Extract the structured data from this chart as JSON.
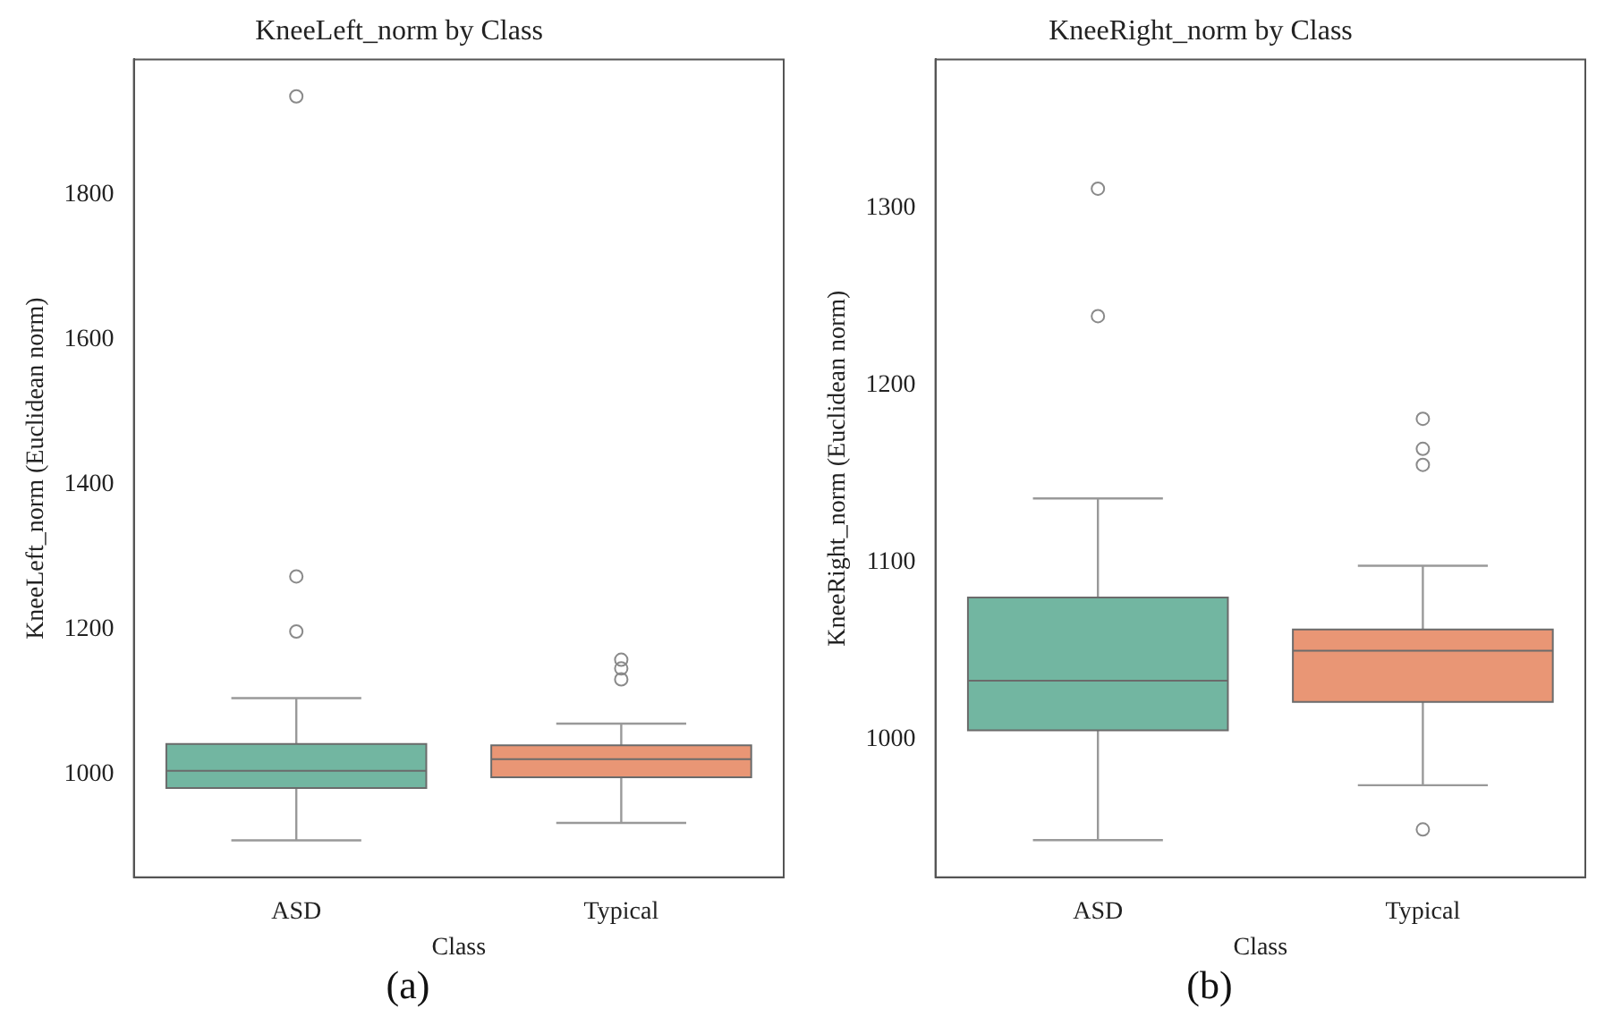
{
  "chart_data": [
    {
      "type": "box",
      "title": "KneeLeft_norm by Class",
      "xlabel": "Class",
      "ylabel": "KneeLeft_norm (Euclidean norm)",
      "categories": [
        "ASD",
        "Typical"
      ],
      "colors": [
        "#72b6a1",
        "#e99675"
      ],
      "boxes": [
        {
          "low": 909,
          "q1": 981,
          "median": 1005,
          "q3": 1042,
          "high": 1105,
          "outliers": [
            1935,
            1273,
            1197
          ]
        },
        {
          "low": 933,
          "q1": 996,
          "median": 1021,
          "q3": 1040,
          "high": 1070,
          "outliers": [
            1158,
            1146,
            1131
          ]
        }
      ],
      "ylim": [
        858,
        1986
      ],
      "yticks": [
        1000,
        1200,
        1400,
        1600,
        1800
      ],
      "grid": false,
      "annotations": [
        "(a)"
      ]
    },
    {
      "type": "box",
      "title": "KneeRight_norm by Class",
      "xlabel": "Class",
      "ylabel": "KneeRight_norm (Euclidean norm)",
      "categories": [
        "ASD",
        "Typical"
      ],
      "colors": [
        "#72b6a1",
        "#e99675"
      ],
      "boxes": [
        {
          "low": 943,
          "q1": 1005,
          "median": 1033,
          "q3": 1080,
          "high": 1136,
          "outliers": [
            1311,
            1239
          ]
        },
        {
          "low": 974,
          "q1": 1021,
          "median": 1050,
          "q3": 1062,
          "high": 1098,
          "outliers": [
            1181,
            1164,
            1155,
            949
          ]
        }
      ],
      "ylim": [
        922,
        1384
      ],
      "yticks": [
        1000,
        1100,
        1200,
        1300
      ],
      "grid": false,
      "annotations": [
        "(b)"
      ]
    }
  ]
}
